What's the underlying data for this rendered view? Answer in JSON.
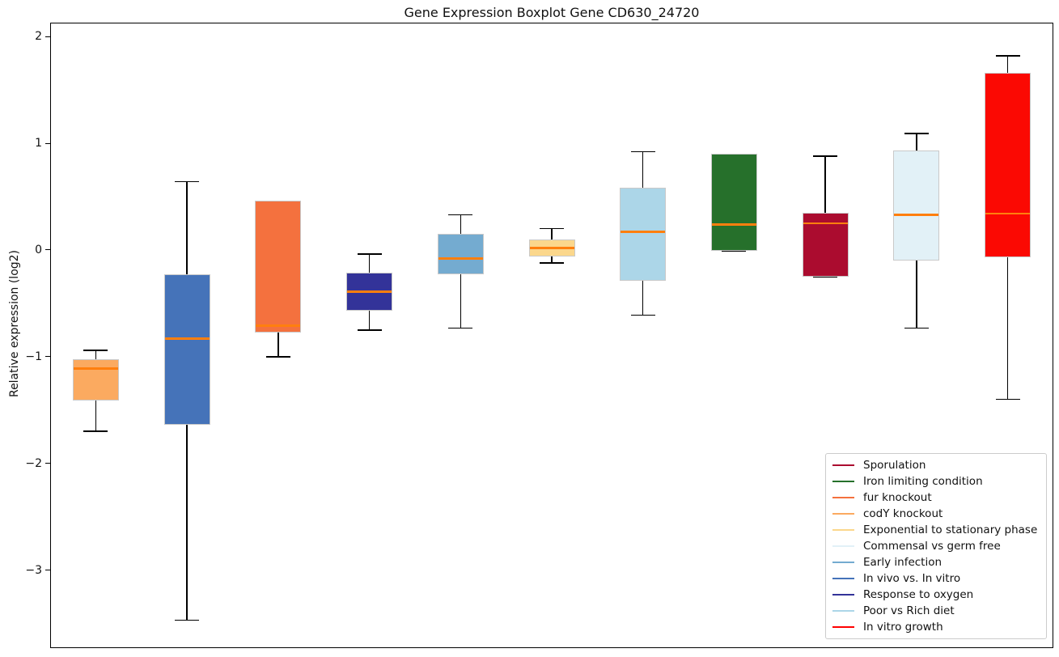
{
  "chart_data": {
    "type": "box",
    "title": "Gene Expression Boxplot Gene CD630_24720",
    "ylabel": "Relative expression (log2)",
    "xlabel": "",
    "ylim": [
      -3.73,
      2.13
    ],
    "yticks": [
      2,
      1,
      0,
      -1,
      -2,
      -3
    ],
    "grid": false,
    "legend_position": "lower right",
    "median_color": "#ff7f0e",
    "whisker_color": "#000000",
    "box_edge_color": "#c9c9c9",
    "boxes": [
      {
        "label": "codY knockout",
        "color": "#fbaa60",
        "whisker_low": -1.7,
        "q1": -1.41,
        "median": -1.11,
        "q3": -1.02,
        "whisker_high": -0.94
      },
      {
        "label": "In vivo vs. In vitro",
        "color": "#4573b9",
        "whisker_low": -3.47,
        "q1": -1.64,
        "median": -0.83,
        "q3": -0.23,
        "whisker_high": 0.64
      },
      {
        "label": "fur knockout",
        "color": "#f4713e",
        "whisker_low": -1.0,
        "q1": -0.77,
        "median": -0.71,
        "q3": 0.46,
        "whisker_high": 0.46
      },
      {
        "label": "Response to oxygen",
        "color": "#333399",
        "whisker_low": -0.75,
        "q1": -0.57,
        "median": -0.39,
        "q3": -0.21,
        "whisker_high": -0.04
      },
      {
        "label": "Early infection",
        "color": "#74abd0",
        "whisker_low": -0.73,
        "q1": -0.23,
        "median": -0.08,
        "q3": 0.15,
        "whisker_high": 0.33
      },
      {
        "label": "Exponential to stationary phase",
        "color": "#fbd78c",
        "whisker_low": -0.12,
        "q1": -0.06,
        "median": 0.02,
        "q3": 0.1,
        "whisker_high": 0.2
      },
      {
        "label": "Poor vs Rich diet",
        "color": "#acd6e8",
        "whisker_low": -0.61,
        "q1": -0.29,
        "median": 0.17,
        "q3": 0.58,
        "whisker_high": 0.92
      },
      {
        "label": "Iron limiting condition",
        "color": "#26702b",
        "whisker_low": -0.01,
        "q1": -0.01,
        "median": 0.24,
        "q3": 0.9,
        "whisker_high": 0.9
      },
      {
        "label": "Sporulation",
        "color": "#ab0c2f",
        "whisker_low": -0.25,
        "q1": -0.25,
        "median": 0.25,
        "q3": 0.35,
        "whisker_high": 0.88
      },
      {
        "label": "Commensal vs germ free",
        "color": "#e2f1f7",
        "whisker_low": -0.73,
        "q1": -0.1,
        "median": 0.33,
        "q3": 0.93,
        "whisker_high": 1.09
      },
      {
        "label": "In vitro growth",
        "color": "#fb0903",
        "whisker_low": -1.4,
        "q1": -0.07,
        "median": 0.34,
        "q3": 1.66,
        "whisker_high": 1.82
      }
    ],
    "legend": [
      {
        "label": "Sporulation",
        "color": "#ab0c2f"
      },
      {
        "label": "Iron limiting condition",
        "color": "#26702b"
      },
      {
        "label": "fur knockout",
        "color": "#f4713e"
      },
      {
        "label": "codY knockout",
        "color": "#fbaa60"
      },
      {
        "label": "Exponential to stationary phase",
        "color": "#fbd78c"
      },
      {
        "label": "Commensal vs germ free",
        "color": "#e2f1f7"
      },
      {
        "label": "Early infection",
        "color": "#74abd0"
      },
      {
        "label": "In vivo vs. In vitro",
        "color": "#4573b9"
      },
      {
        "label": "Response to oxygen",
        "color": "#333399"
      },
      {
        "label": "Poor vs Rich diet",
        "color": "#acd6e8"
      },
      {
        "label": "In vitro growth",
        "color": "#ff0000"
      }
    ]
  }
}
